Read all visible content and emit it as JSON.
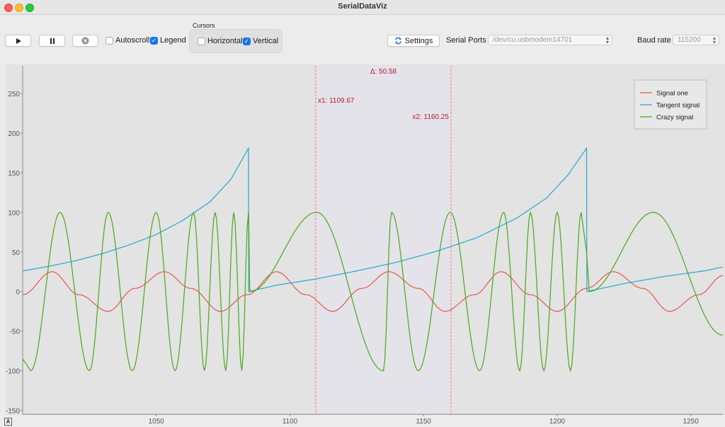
{
  "app": {
    "title": "SerialDataViz"
  },
  "toolbar": {
    "play_icon": "play-icon",
    "pause_icon": "pause-icon",
    "clear_icon": "clear-icon",
    "autoscroll_label": "Autoscroll",
    "autoscroll_checked": false,
    "legend_label": "Legend",
    "legend_checked": true,
    "cursors": {
      "title": "Cursors",
      "horizontal_label": "Horizontal",
      "horizontal_checked": false,
      "vertical_label": "Vertical",
      "vertical_checked": true
    },
    "settings_label": "Settings",
    "serial_ports_label": "Serial Ports",
    "serial_port_value": "/dev/cu.usbmodem14701",
    "baud_rate_label": "Baud rate",
    "baud_rate_value": "115200"
  },
  "plot": {
    "corner_label": "A",
    "cursor_x1_label": "x1: 1109.67",
    "cursor_x2_label": "x2: 1160.25",
    "cursor_delta_label": "Δ: 50.58"
  },
  "chart_data": {
    "type": "line",
    "xlim": [
      1000,
      1262
    ],
    "ylim": [
      -155,
      285
    ],
    "x_ticks": [
      1050,
      1100,
      1150,
      1200,
      1250
    ],
    "y_ticks": [
      250,
      200,
      150,
      100,
      50,
      0,
      -50,
      -100,
      -150
    ],
    "grid": false,
    "legend_position": "top-right",
    "cursors": {
      "x1": 1109.67,
      "x2": 1160.25,
      "delta": 50.58
    },
    "series": [
      {
        "name": "Signal one",
        "color": "#e8554e",
        "x": [
          1000,
          1011,
          1021,
          1032,
          1042,
          1053,
          1063,
          1074,
          1084,
          1095,
          1106,
          1116,
          1127,
          1137,
          1148,
          1158,
          1169,
          1179,
          1190,
          1200,
          1211,
          1221,
          1232,
          1242,
          1253,
          1262
        ],
        "y": [
          -4,
          25,
          -4,
          -25,
          4,
          25,
          4,
          -25,
          -4,
          25,
          -4,
          -25,
          4,
          25,
          4,
          -25,
          -4,
          25,
          -4,
          -25,
          4,
          25,
          4,
          -25,
          -4,
          20
        ]
      },
      {
        "name": "Tangent signal",
        "color": "#21aacd",
        "x": [
          1000,
          1010,
          1020,
          1030,
          1040,
          1050,
          1060,
          1070,
          1078,
          1084.5,
          1084.6,
          1095,
          1110,
          1125,
          1140,
          1155,
          1170,
          1185,
          1196,
          1204,
          1211,
          1211.1,
          1225,
          1240,
          1255,
          1262
        ],
        "y": [
          26,
          32,
          39,
          48,
          59,
          72,
          90,
          113,
          142,
          181,
          0,
          8,
          16,
          26,
          37,
          51,
          68,
          93,
          118,
          147,
          181,
          0,
          10,
          19,
          26,
          31
        ]
      },
      {
        "name": "Crazy signal",
        "color": "#48a81a",
        "x": [
          1000,
          1003,
          1014,
          1025,
          1032,
          1041,
          1050,
          1057,
          1064,
          1068,
          1072,
          1076,
          1079,
          1082,
          1084.5,
          1085,
          1110,
          1135,
          1138,
          1148,
          1160,
          1171,
          1180,
          1186,
          1190,
          1195,
          1200,
          1205,
          1209,
          1211,
          1212,
          1236,
          1262
        ],
        "y": [
          -85,
          -100,
          100,
          -100,
          100,
          -100,
          100,
          -100,
          100,
          -100,
          100,
          -100,
          100,
          -100,
          100,
          0,
          100,
          -100,
          100,
          -100,
          100,
          -100,
          100,
          -100,
          100,
          -100,
          100,
          -100,
          100,
          50,
          0,
          100,
          -55
        ]
      }
    ]
  }
}
